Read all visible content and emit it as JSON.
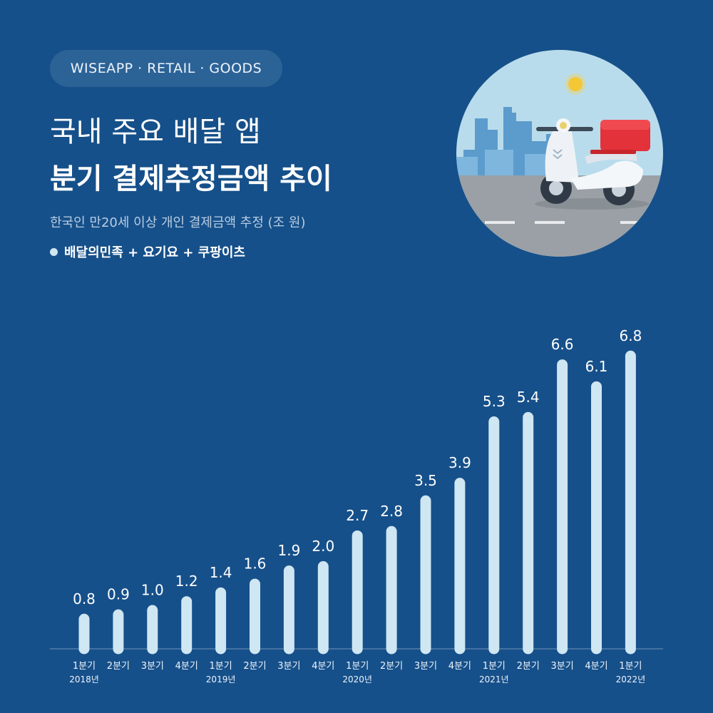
{
  "header": {
    "brand": "WISEAPP · RETAIL · GOODS",
    "title_line1": "국내 주요 배달 앱",
    "title_line2": "분기 결제추정금액 추이",
    "subtitle": "한국인 만20세 이상 개인 결제금액 추정 (조 원)",
    "legend_label": "배달의민족 + 요기요 + 쿠팡이츠"
  },
  "colors": {
    "background": "#16508a",
    "bar": "#cfe6f3",
    "pill": "#2c6397",
    "axis": "#6f93b8"
  },
  "chart_data": {
    "type": "bar",
    "title": "분기 결제추정금액 추이",
    "xlabel": "",
    "ylabel": "",
    "ylim": [
      0,
      7.2
    ],
    "grid": false,
    "categories": [
      "1분기",
      "2분기",
      "3분기",
      "4분기",
      "1분기",
      "2분기",
      "3분기",
      "4분기",
      "1분기",
      "2분기",
      "3분기",
      "4분기",
      "1분기",
      "2분기",
      "3분기",
      "4분기",
      "1분기"
    ],
    "year_labels": [
      "2018년",
      "",
      "",
      "",
      "2019년",
      "",
      "",
      "",
      "2020년",
      "",
      "",
      "",
      "2021년",
      "",
      "",
      "",
      "2022년"
    ],
    "values": [
      0.8,
      0.9,
      1.0,
      1.2,
      1.4,
      1.6,
      1.9,
      2.0,
      2.7,
      2.8,
      3.5,
      3.9,
      5.3,
      5.4,
      6.6,
      6.1,
      6.8
    ],
    "value_labels": [
      "0.8",
      "0.9",
      "1.0",
      "1.2",
      "1.4",
      "1.6",
      "1.9",
      "2.0",
      "2.7",
      "2.8",
      "3.5",
      "3.9",
      "5.3",
      "5.4",
      "6.6",
      "6.1",
      "6.8"
    ],
    "series": [
      {
        "name": "배달의민족 + 요기요 + 쿠팡이츠",
        "values": [
          0.8,
          0.9,
          1.0,
          1.2,
          1.4,
          1.6,
          1.9,
          2.0,
          2.7,
          2.8,
          3.5,
          3.9,
          5.3,
          5.4,
          6.6,
          6.1,
          6.8
        ]
      }
    ]
  },
  "illustration": {
    "icon": "delivery-scooter-icon"
  }
}
